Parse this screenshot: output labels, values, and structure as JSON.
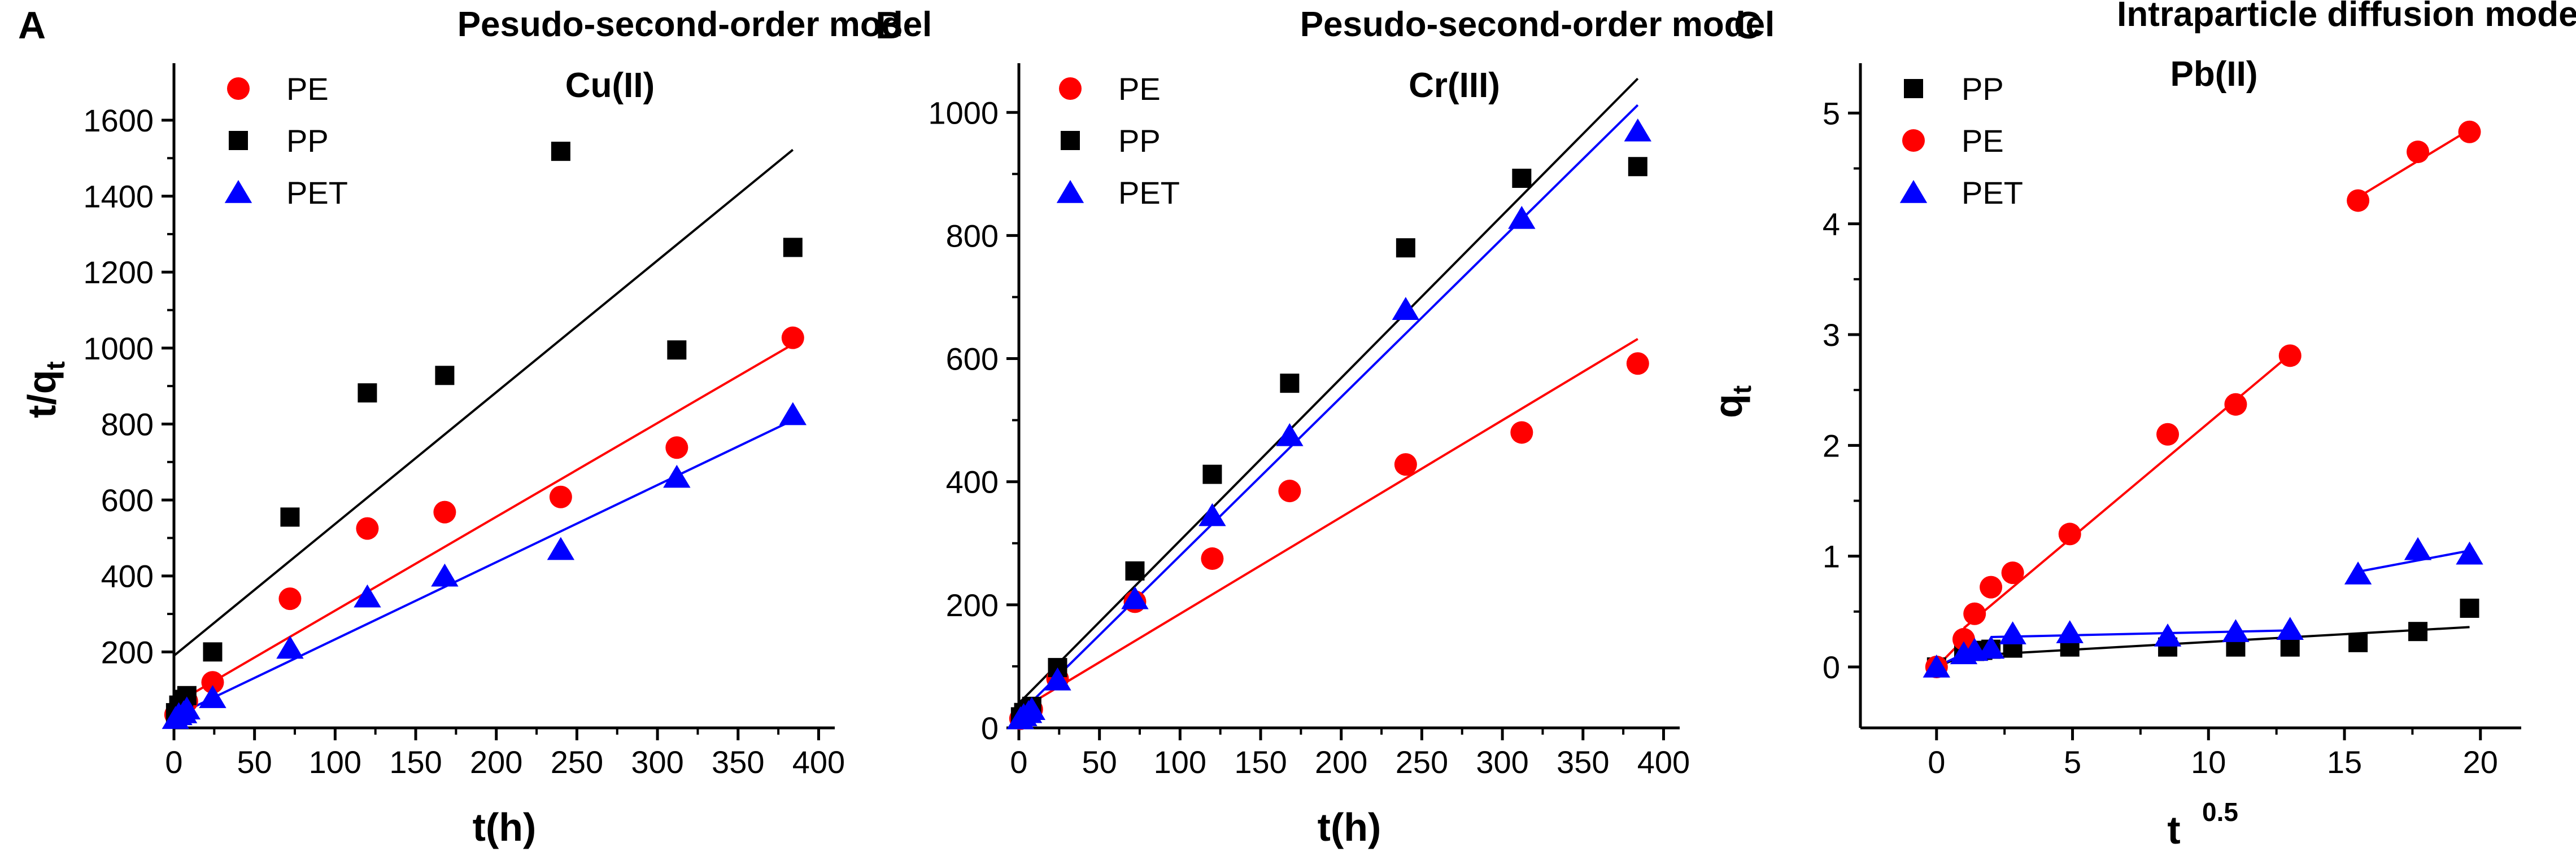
{
  "figure": {
    "description": "Three-panel kinetic model plots"
  },
  "chart_data": [
    {
      "type": "scatter",
      "panel_label": "A",
      "title": "Pesudo-second-order model",
      "annotation": "Cu(II)",
      "xlabel": "t(h)",
      "ylabel_main": "t/q",
      "ylabel_sub": "t",
      "xlim": [
        0,
        410
      ],
      "ylim": [
        0,
        1750
      ],
      "xticks": [
        0,
        50,
        100,
        150,
        200,
        250,
        300,
        350,
        400
      ],
      "xtick_labels": [
        "0",
        "50",
        "100",
        "150",
        "200",
        "250",
        "300",
        "350",
        "400"
      ],
      "yticks": [
        200,
        400,
        600,
        800,
        1000,
        1200,
        1400,
        1600
      ],
      "ytick_labels": [
        "200",
        "400",
        "600",
        "800",
        "1000",
        "1200",
        "1400",
        "1600"
      ],
      "legend": [
        "PE",
        "PP",
        "PET"
      ],
      "series": [
        {
          "name": "PE",
          "color": "#ff0000",
          "marker": "circle",
          "x": [
            1,
            3,
            6,
            8,
            24,
            72,
            120,
            168,
            240,
            312,
            384
          ],
          "y": [
            35,
            50,
            60,
            70,
            120,
            340,
            525,
            568,
            608,
            738,
            1027
          ],
          "fit": [
            [
              0,
              62
            ],
            [
              384,
              1010
            ]
          ]
        },
        {
          "name": "PP",
          "color": "#000000",
          "marker": "square",
          "x": [
            1,
            3,
            6,
            8,
            24,
            72,
            120,
            168,
            240,
            312,
            384
          ],
          "y": [
            40,
            60,
            75,
            85,
            200,
            555,
            882,
            928,
            1518,
            995,
            1265
          ],
          "fit": [
            [
              0,
              190
            ],
            [
              384,
              1522
            ]
          ]
        },
        {
          "name": "PET",
          "color": "#0000ff",
          "marker": "triangle",
          "x": [
            1,
            3,
            6,
            8,
            24,
            72,
            120,
            168,
            240,
            312,
            384
          ],
          "y": [
            25,
            35,
            40,
            50,
            80,
            210,
            345,
            400,
            470,
            660,
            825
          ],
          "fit": [
            [
              0,
              30
            ],
            [
              384,
              810
            ]
          ]
        }
      ]
    },
    {
      "type": "scatter",
      "panel_label": "B",
      "title": "Pesudo-second-order model",
      "annotation": "Cr(III)",
      "xlabel": "t(h)",
      "ylabel_main": "",
      "ylabel_sub": "",
      "xlim": [
        0,
        410
      ],
      "ylim": [
        0,
        1080
      ],
      "xticks": [
        0,
        50,
        100,
        150,
        200,
        250,
        300,
        350,
        400
      ],
      "xtick_labels": [
        "0",
        "50",
        "100",
        "150",
        "200",
        "250",
        "300",
        "350",
        "400"
      ],
      "yticks": [
        0,
        200,
        400,
        600,
        800,
        1000
      ],
      "ytick_labels": [
        "0",
        "200",
        "400",
        "600",
        "800",
        "1000"
      ],
      "legend": [
        "PE",
        "PP",
        "PET"
      ],
      "series": [
        {
          "name": "PE",
          "color": "#ff0000",
          "marker": "circle",
          "x": [
            1,
            3,
            6,
            8,
            24,
            72,
            120,
            168,
            240,
            312,
            384
          ],
          "y": [
            15,
            20,
            25,
            30,
            80,
            205,
            275,
            385,
            428,
            480,
            592
          ],
          "fit": [
            [
              0,
              28
            ],
            [
              384,
              632
            ]
          ]
        },
        {
          "name": "PP",
          "color": "#000000",
          "marker": "square",
          "x": [
            1,
            3,
            6,
            8,
            24,
            72,
            120,
            168,
            240,
            312,
            384
          ],
          "y": [
            18,
            25,
            30,
            35,
            98,
            255,
            412,
            560,
            780,
            893,
            912
          ],
          "fit": [
            [
              0,
              40
            ],
            [
              384,
              1055
            ]
          ]
        },
        {
          "name": "PET",
          "color": "#0000ff",
          "marker": "triangle",
          "x": [
            1,
            3,
            6,
            8,
            24,
            72,
            120,
            168,
            240,
            312,
            384
          ],
          "y": [
            15,
            20,
            25,
            30,
            78,
            210,
            345,
            475,
            680,
            828,
            970
          ],
          "fit": [
            [
              0,
              22
            ],
            [
              384,
              1012
            ]
          ]
        }
      ]
    },
    {
      "type": "scatter",
      "panel_label": "C",
      "title": "Intraparticle diffusion model",
      "annotation": "Pb(II)",
      "xlabel_main": "t",
      "xlabel_sup": "0.5",
      "ylabel_main": "q",
      "ylabel_sub": "t",
      "xlim": [
        -2.8,
        21.5
      ],
      "ylim": [
        -0.55,
        5.45
      ],
      "xticks": [
        0,
        5,
        10,
        15,
        20
      ],
      "xtick_labels": [
        "0",
        "5",
        "10",
        "15",
        "20"
      ],
      "yticks": [
        0,
        1,
        2,
        3,
        4,
        5
      ],
      "ytick_labels": [
        "0",
        "1",
        "2",
        "3",
        "4",
        "5"
      ],
      "legend": [
        "PP",
        "PE",
        "PET"
      ],
      "series": [
        {
          "name": "PP",
          "color": "#000000",
          "marker": "square",
          "x": [
            0,
            1.0,
            1.4,
            1.7,
            2.0,
            2.8,
            4.9,
            8.5,
            11.0,
            13.0,
            15.5,
            17.7,
            19.6
          ],
          "y": [
            0.0,
            0.12,
            0.14,
            0.15,
            0.16,
            0.17,
            0.18,
            0.18,
            0.18,
            0.18,
            0.22,
            0.32,
            0.53
          ],
          "fits": [
            [
              [
                0,
                0.0
              ],
              [
                1.0,
                0.1
              ]
            ],
            [
              [
                1.0,
                0.1
              ],
              [
                19.6,
                0.36
              ]
            ]
          ]
        },
        {
          "name": "PE",
          "color": "#ff0000",
          "marker": "circle",
          "x": [
            0,
            1.0,
            1.4,
            2.0,
            2.8,
            4.9,
            8.5,
            11.0,
            13.0,
            15.5,
            17.7,
            19.6
          ],
          "y": [
            0.0,
            0.25,
            0.48,
            0.72,
            0.85,
            1.2,
            2.1,
            2.37,
            2.81,
            4.21,
            4.65,
            4.83
          ],
          "fits": [
            [
              [
                0,
                0.0
              ],
              [
                1.0,
                0.25
              ]
            ],
            [
              [
                1.0,
                0.35
              ],
              [
                13.0,
                2.82
              ]
            ],
            [
              [
                15.5,
                4.24
              ],
              [
                19.6,
                4.85
              ]
            ]
          ]
        },
        {
          "name": "PET",
          "color": "#0000ff",
          "marker": "triangle",
          "x": [
            0,
            1.0,
            1.4,
            2.0,
            2.8,
            4.9,
            8.5,
            11.0,
            13.0,
            15.5,
            17.7,
            19.6
          ],
          "y": [
            0.0,
            0.12,
            0.15,
            0.17,
            0.3,
            0.31,
            0.28,
            0.32,
            0.34,
            0.84,
            1.06,
            1.02
          ],
          "fits": [
            [
              [
                0,
                0.0
              ],
              [
                1.0,
                0.12
              ]
            ],
            [
              [
                2.0,
                0.27
              ],
              [
                13.0,
                0.33
              ]
            ],
            [
              [
                15.5,
                0.86
              ],
              [
                19.6,
                1.05
              ]
            ]
          ]
        }
      ]
    }
  ]
}
